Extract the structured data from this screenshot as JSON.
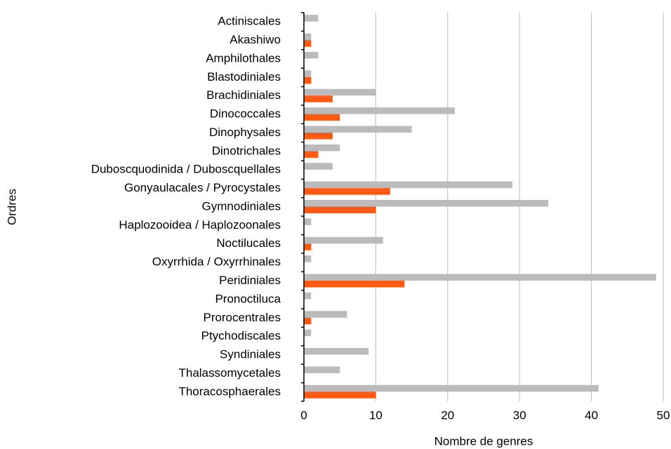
{
  "chart_data": {
    "type": "hbar",
    "xlabel": "Nombre de genres",
    "ylabel": "Ordres",
    "categories": [
      "Actiniscales",
      "Akashiwo",
      "Amphilothales",
      "Blastodiniales",
      "Brachidiniales",
      "Dinococcales",
      "Dinophysales",
      "Dinotrichales",
      "Duboscquodinida / Duboscquellales",
      "Gonyaulacales / Pyrocystales",
      "Gymnodiniales",
      "Haplozooidea / Haplozoonales",
      "Noctilucales",
      "Oxyrrhida / Oxyrrhinales",
      "Peridiniales",
      "Pronoctiluca",
      "Prorocentrales",
      "Ptychodiscales",
      "Syndiniales",
      "Thalassomycetales",
      "Thoracosphaerales"
    ],
    "series": [
      {
        "color": "#bbbbbb",
        "values": [
          2,
          1,
          2,
          1,
          10,
          21,
          15,
          5,
          4,
          29,
          34,
          1,
          11,
          1,
          49,
          1,
          6,
          1,
          9,
          5,
          41
        ]
      },
      {
        "color": "#ff5a14",
        "values": [
          0,
          1,
          0,
          1,
          4,
          5,
          4,
          2,
          0,
          12,
          10,
          0,
          1,
          0,
          14,
          0,
          1,
          0,
          0,
          0,
          10
        ]
      }
    ],
    "xlim": [
      0,
      50
    ],
    "xticks": [
      0,
      10,
      20,
      30,
      40,
      50
    ],
    "grid": true
  }
}
